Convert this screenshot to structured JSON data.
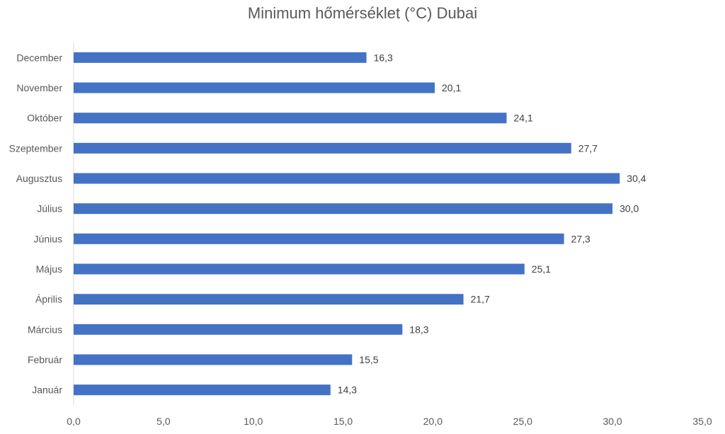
{
  "chart_data": {
    "type": "bar",
    "orientation": "horizontal",
    "title": "Minimum hőmérséklet (°C) Dubai",
    "xlabel": "",
    "ylabel": "",
    "categories": [
      "Január",
      "Február",
      "Március",
      "Április",
      "Május",
      "Június",
      "Július",
      "Augusztus",
      "Szeptember",
      "Október",
      "November",
      "December"
    ],
    "values": [
      14.3,
      15.5,
      18.3,
      21.7,
      25.1,
      27.3,
      30.0,
      30.4,
      27.7,
      24.1,
      20.1,
      16.3
    ],
    "value_labels": [
      "14,3",
      "15,5",
      "18,3",
      "21,7",
      "25,1",
      "27,3",
      "30,0",
      "30,4",
      "27,7",
      "24,1",
      "20,1",
      "16,3"
    ],
    "xlim": [
      0,
      35
    ],
    "x_ticks": [
      0,
      5,
      10,
      15,
      20,
      25,
      30,
      35
    ],
    "x_tick_labels": [
      "0,0",
      "5,0",
      "10,0",
      "15,0",
      "20,0",
      "25,0",
      "30,0",
      "35,0"
    ],
    "grid": false,
    "legend": "none",
    "bar_color": "#4472C4",
    "axis_color": "#D9D9D9",
    "text_color": "#595959",
    "label_color": "#404040"
  }
}
